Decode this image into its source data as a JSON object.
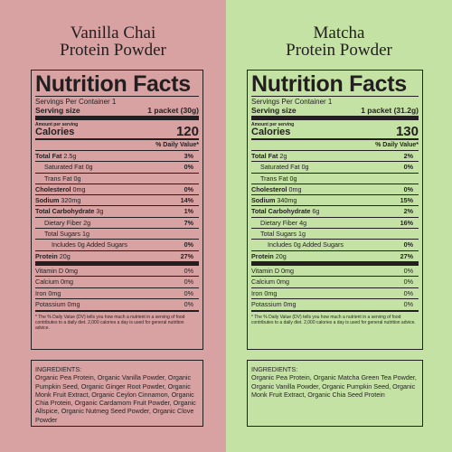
{
  "colors": {
    "vanilla_bg": "#d8a1a2",
    "matcha_bg": "#c3e2a4",
    "ink": "#231f20"
  },
  "products": [
    {
      "title_line1": "Vanilla Chai",
      "title_line2": "Protein Powder",
      "heading": "Nutrition Facts",
      "servings_per_container": "Servings Per Container 1",
      "serving_size_label": "Serving size",
      "serving_size_value": "1 packet (30g)",
      "amount_per_serving": "Amount per serving",
      "calories_label": "Calories",
      "calories_value": "120",
      "dv_header": "% Daily Value*",
      "nutrients": [
        {
          "name": "Total Fat",
          "amount": "2.5g",
          "dv": "3%"
        },
        {
          "name": "Saturated Fat",
          "amount": "0g",
          "dv": "0%"
        },
        {
          "name": "Trans Fat",
          "amount": "0g",
          "dv": ""
        },
        {
          "name": "Cholesterol",
          "amount": "0mg",
          "dv": "0%"
        },
        {
          "name": "Sodium",
          "amount": "320mg",
          "dv": "14%"
        },
        {
          "name": "Total Carbohydrate",
          "amount": "3g",
          "dv": "1%"
        },
        {
          "name": "Dietary Fiber",
          "amount": "2g",
          "dv": "7%"
        },
        {
          "name": "Total Sugars",
          "amount": "1g",
          "dv": ""
        },
        {
          "name": "Includes",
          "amount": "0g Added Sugars",
          "dv": "0%"
        },
        {
          "name": "Protein",
          "amount": "20g",
          "dv": "27%"
        }
      ],
      "vitamins": [
        {
          "name": "Vitamin D 0mg",
          "dv": "0%"
        },
        {
          "name": "Calcium 0mg",
          "dv": "0%"
        },
        {
          "name": "Iron 0mg",
          "dv": "0%"
        },
        {
          "name": "Potassium 0mg",
          "dv": "0%"
        }
      ],
      "footnote": "* The % Daily Value (DV) tells you how much a nutrient in a serving of food contributes to a daily diet. 2,000 calories a day is used for general nutrition advice.",
      "ingredients_label": "INGREDIENTS:",
      "ingredients_text": "Organic Pea Protein, Organic Vanilla Powder, Organic Pumpkin Seed, Organic Ginger Root Powder, Organic Monk Fruit Extract, Organic Ceylon Cinnamon, Organic Chia Protein, Organic Cardamom Fruit Powder, Organic Allspice, Organic Nutmeg Seed Powder, Organic Clove Powder"
    },
    {
      "title_line1": "Matcha",
      "title_line2": "Protein Powder",
      "heading": "Nutrition Facts",
      "servings_per_container": "Servings Per Container 1",
      "serving_size_label": "Serving size",
      "serving_size_value": "1 packet (31.2g)",
      "amount_per_serving": "Amount per serving",
      "calories_label": "Calories",
      "calories_value": "130",
      "dv_header": "% Daily Value*",
      "nutrients": [
        {
          "name": "Total Fat",
          "amount": "2g",
          "dv": "2%"
        },
        {
          "name": "Saturated Fat",
          "amount": "0g",
          "dv": "0%"
        },
        {
          "name": "Trans Fat",
          "amount": "0g",
          "dv": ""
        },
        {
          "name": "Cholesterol",
          "amount": "0mg",
          "dv": "0%"
        },
        {
          "name": "Sodium",
          "amount": "340mg",
          "dv": "15%"
        },
        {
          "name": "Total Carbohydrate",
          "amount": "6g",
          "dv": "2%"
        },
        {
          "name": "Dietary Fiber",
          "amount": "4g",
          "dv": "16%"
        },
        {
          "name": "Total Sugars",
          "amount": "1g",
          "dv": ""
        },
        {
          "name": "Includes",
          "amount": "0g Added Sugars",
          "dv": "0%"
        },
        {
          "name": "Protein",
          "amount": "20g",
          "dv": "27%"
        }
      ],
      "vitamins": [
        {
          "name": "Vitamin D 0mg",
          "dv": "0%"
        },
        {
          "name": "Calcium 0mg",
          "dv": "0%"
        },
        {
          "name": "Iron 0mg",
          "dv": "0%"
        },
        {
          "name": "Potassium 0mg",
          "dv": "0%"
        }
      ],
      "footnote": "* The % Daily Value (DV) tells you how much a nutrient in a serving of food contributes to a daily diet. 2,000 calories a day is used for general nutrition advice.",
      "ingredients_label": "INGREDIENTS:",
      "ingredients_text": "Organic Pea Protein, Organic Matcha Green Tea Powder, Organic Vanilla Powder, Organic Pumpkin Seed, Organic Monk Fruit Extract, Organic Chia Seed Protein"
    }
  ]
}
